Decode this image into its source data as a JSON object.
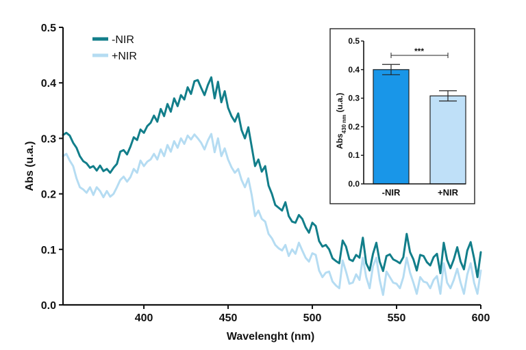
{
  "chart_data": [
    {
      "type": "line",
      "xlabel": "Wavelenght (nm)",
      "ylabel": "Abs (u.a.)",
      "xlim": [
        352,
        600
      ],
      "ylim": [
        0.0,
        0.5
      ],
      "xticks": [
        400,
        450,
        500,
        550,
        600
      ],
      "yticks": [
        "0.0",
        "0.1",
        "0.2",
        "0.3",
        "0.4",
        "0.5"
      ],
      "legend_position": "top-left",
      "series": [
        {
          "name": "-NIR",
          "color": "#127e8a",
          "x": [
            352,
            354,
            356,
            358,
            360,
            362,
            364,
            366,
            368,
            370,
            372,
            374,
            376,
            378,
            380,
            382,
            384,
            386,
            388,
            390,
            392,
            394,
            396,
            398,
            400,
            402,
            404,
            406,
            408,
            410,
            412,
            414,
            416,
            418,
            420,
            422,
            424,
            426,
            428,
            430,
            432,
            434,
            436,
            438,
            440,
            442,
            444,
            446,
            448,
            450,
            452,
            454,
            456,
            458,
            460,
            462,
            464,
            466,
            468,
            470,
            472,
            474,
            476,
            478,
            480,
            482,
            484,
            486,
            488,
            490,
            492,
            494,
            496,
            498,
            500,
            502,
            504,
            506,
            508,
            510,
            512,
            514,
            516,
            518,
            520,
            522,
            524,
            526,
            528,
            530,
            532,
            534,
            536,
            538,
            540,
            542,
            544,
            546,
            548,
            550,
            552,
            554,
            556,
            558,
            560,
            562,
            564,
            566,
            568,
            570,
            572,
            574,
            576,
            578,
            580,
            582,
            584,
            586,
            588,
            590,
            592,
            594,
            596,
            598,
            600
          ],
          "values": [
            0.306,
            0.31,
            0.305,
            0.292,
            0.283,
            0.268,
            0.259,
            0.255,
            0.247,
            0.25,
            0.242,
            0.251,
            0.241,
            0.245,
            0.238,
            0.247,
            0.254,
            0.276,
            0.279,
            0.271,
            0.285,
            0.302,
            0.297,
            0.316,
            0.31,
            0.322,
            0.328,
            0.341,
            0.33,
            0.353,
            0.34,
            0.362,
            0.348,
            0.372,
            0.358,
            0.378,
            0.37,
            0.392,
            0.38,
            0.403,
            0.405,
            0.391,
            0.378,
            0.396,
            0.41,
            0.372,
            0.402,
            0.365,
            0.385,
            0.355,
            0.34,
            0.33,
            0.345,
            0.315,
            0.3,
            0.32,
            0.285,
            0.25,
            0.262,
            0.24,
            0.25,
            0.215,
            0.2,
            0.18,
            0.175,
            0.17,
            0.185,
            0.16,
            0.15,
            0.148,
            0.162,
            0.155,
            0.14,
            0.13,
            0.148,
            0.142,
            0.115,
            0.105,
            0.108,
            0.1,
            0.084,
            0.079,
            0.075,
            0.116,
            0.105,
            0.082,
            0.079,
            0.09,
            0.085,
            0.121,
            0.075,
            0.062,
            0.092,
            0.112,
            0.078,
            0.061,
            0.088,
            0.091,
            0.082,
            0.079,
            0.075,
            0.086,
            0.128,
            0.095,
            0.082,
            0.062,
            0.09,
            0.088,
            0.077,
            0.071,
            0.086,
            0.092,
            0.057,
            0.112,
            0.081,
            0.066,
            0.082,
            0.104,
            0.078,
            0.064,
            0.098,
            0.113,
            0.084,
            0.05,
            0.095
          ],
          "lw": 3
        },
        {
          "name": "+NIR",
          "color": "#b5dcf2",
          "x": [
            352,
            354,
            356,
            358,
            360,
            362,
            364,
            366,
            368,
            370,
            372,
            374,
            376,
            378,
            380,
            382,
            384,
            386,
            388,
            390,
            392,
            394,
            396,
            398,
            400,
            402,
            404,
            406,
            408,
            410,
            412,
            414,
            416,
            418,
            420,
            422,
            424,
            426,
            428,
            430,
            432,
            434,
            436,
            438,
            440,
            442,
            444,
            446,
            448,
            450,
            452,
            454,
            456,
            458,
            460,
            462,
            464,
            466,
            468,
            470,
            472,
            474,
            476,
            478,
            480,
            482,
            484,
            486,
            488,
            490,
            492,
            494,
            496,
            498,
            500,
            502,
            504,
            506,
            508,
            510,
            512,
            514,
            516,
            518,
            520,
            522,
            524,
            526,
            528,
            530,
            532,
            534,
            536,
            538,
            540,
            542,
            544,
            546,
            548,
            550,
            552,
            554,
            556,
            558,
            560,
            562,
            564,
            566,
            568,
            570,
            572,
            574,
            576,
            578,
            580,
            582,
            584,
            586,
            588,
            590,
            592,
            594,
            596,
            598,
            600
          ],
          "values": [
            0.268,
            0.272,
            0.26,
            0.25,
            0.228,
            0.212,
            0.208,
            0.202,
            0.212,
            0.198,
            0.212,
            0.205,
            0.194,
            0.205,
            0.195,
            0.2,
            0.212,
            0.225,
            0.231,
            0.222,
            0.23,
            0.245,
            0.238,
            0.26,
            0.25,
            0.258,
            0.262,
            0.272,
            0.262,
            0.28,
            0.268,
            0.288,
            0.276,
            0.295,
            0.283,
            0.3,
            0.29,
            0.305,
            0.298,
            0.307,
            0.3,
            0.292,
            0.28,
            0.296,
            0.308,
            0.275,
            0.3,
            0.268,
            0.282,
            0.262,
            0.248,
            0.238,
            0.245,
            0.225,
            0.212,
            0.228,
            0.198,
            0.16,
            0.17,
            0.155,
            0.15,
            0.128,
            0.12,
            0.108,
            0.102,
            0.098,
            0.108,
            0.088,
            0.1,
            0.092,
            0.112,
            0.098,
            0.085,
            0.078,
            0.093,
            0.09,
            0.062,
            0.05,
            0.058,
            0.06,
            0.042,
            0.035,
            0.03,
            0.08,
            0.06,
            0.038,
            0.04,
            0.055,
            0.045,
            0.085,
            0.05,
            0.03,
            0.07,
            0.085,
            0.045,
            0.018,
            0.06,
            0.05,
            0.04,
            0.038,
            0.03,
            0.05,
            0.085,
            0.058,
            0.04,
            0.02,
            0.05,
            0.042,
            0.04,
            0.03,
            0.045,
            0.052,
            0.02,
            0.075,
            0.04,
            0.03,
            0.045,
            0.065,
            0.04,
            0.02,
            0.055,
            0.075,
            0.04,
            0.02,
            0.062
          ],
          "lw": 3
        }
      ]
    },
    {
      "type": "bar",
      "ylabel_main": "Abs",
      "ylabel_sub": "430 nm",
      "ylabel_tail": " (u.a.)",
      "categories": [
        "-NIR",
        "+NIR"
      ],
      "values": [
        0.4,
        0.308
      ],
      "errors": [
        0.018,
        0.018
      ],
      "colors": [
        "#1996e8",
        "#bfe0f8"
      ],
      "ylim": [
        0.0,
        0.5
      ],
      "yticks": [
        "0.0",
        "0.1",
        "0.2",
        "0.3",
        "0.4",
        "0.5"
      ],
      "annotation": "***",
      "inset_position": "top-right"
    }
  ]
}
